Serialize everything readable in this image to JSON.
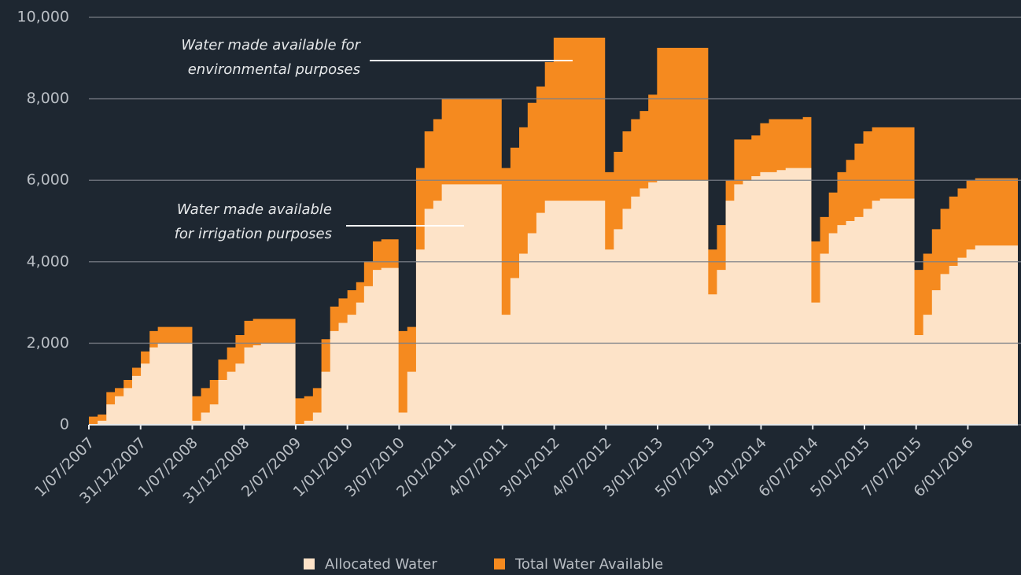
{
  "chart_data": {
    "type": "step-area",
    "x": [
      "2007-07-01",
      "2007-08-01",
      "2007-09-01",
      "2007-10-01",
      "2007-11-01",
      "2007-12-01",
      "2008-01-01",
      "2008-02-01",
      "2008-03-01",
      "2008-04-01",
      "2008-05-01",
      "2008-06-01",
      "2008-07-01",
      "2008-08-01",
      "2008-09-01",
      "2008-10-01",
      "2008-11-01",
      "2008-12-01",
      "2009-01-01",
      "2009-02-01",
      "2009-03-01",
      "2009-04-01",
      "2009-05-01",
      "2009-06-01",
      "2009-07-01",
      "2009-08-01",
      "2009-09-01",
      "2009-10-01",
      "2009-11-01",
      "2009-12-01",
      "2010-01-01",
      "2010-02-01",
      "2010-03-01",
      "2010-04-01",
      "2010-05-01",
      "2010-06-01",
      "2010-07-01",
      "2010-08-01",
      "2010-09-01",
      "2010-10-01",
      "2010-11-01",
      "2010-12-01",
      "2011-01-01",
      "2011-02-01",
      "2011-03-01",
      "2011-04-01",
      "2011-05-01",
      "2011-06-01",
      "2011-07-01",
      "2011-08-01",
      "2011-09-01",
      "2011-10-01",
      "2011-11-01",
      "2011-12-01",
      "2012-01-01",
      "2012-02-01",
      "2012-03-01",
      "2012-04-01",
      "2012-05-01",
      "2012-06-01",
      "2012-07-01",
      "2012-08-01",
      "2012-09-01",
      "2012-10-01",
      "2012-11-01",
      "2012-12-01",
      "2013-01-01",
      "2013-02-01",
      "2013-03-01",
      "2013-04-01",
      "2013-05-01",
      "2013-06-01",
      "2013-07-01",
      "2013-08-01",
      "2013-09-01",
      "2013-10-01",
      "2013-11-01",
      "2013-12-01",
      "2014-01-01",
      "2014-02-01",
      "2014-03-01",
      "2014-04-01",
      "2014-05-01",
      "2014-06-01",
      "2014-07-01",
      "2014-08-01",
      "2014-09-01",
      "2014-10-01",
      "2014-11-01",
      "2014-12-01",
      "2015-01-01",
      "2015-02-01",
      "2015-03-01",
      "2015-04-01",
      "2015-05-01",
      "2015-06-01",
      "2015-07-01",
      "2015-08-01",
      "2015-09-01",
      "2015-10-01",
      "2015-11-01",
      "2015-12-01",
      "2016-01-01",
      "2016-02-01",
      "2016-03-01",
      "2016-04-01",
      "2016-05-01",
      "2016-06-01"
    ],
    "series": [
      {
        "name": "Total Water Available",
        "color": "#f58a1f",
        "values": [
          200,
          250,
          800,
          900,
          1100,
          1400,
          1800,
          2300,
          2400,
          2400,
          2400,
          2400,
          700,
          900,
          1100,
          1600,
          1900,
          2200,
          2550,
          2600,
          2600,
          2600,
          2600,
          2600,
          650,
          700,
          900,
          2100,
          2900,
          3100,
          3300,
          3500,
          4000,
          4500,
          4550,
          4550,
          2300,
          2400,
          6300,
          7200,
          7500,
          8000,
          8000,
          8000,
          8000,
          8000,
          8000,
          8000,
          6300,
          6800,
          7300,
          7900,
          8300,
          8900,
          9500,
          9500,
          9500,
          9500,
          9500,
          9500,
          6200,
          6700,
          7200,
          7500,
          7700,
          8100,
          9250,
          9250,
          9250,
          9250,
          9250,
          9250,
          4300,
          4900,
          6000,
          7000,
          7000,
          7100,
          7400,
          7500,
          7500,
          7500,
          7500,
          7550,
          4500,
          5100,
          5700,
          6200,
          6500,
          6900,
          7200,
          7300,
          7300,
          7300,
          7300,
          7300,
          3800,
          4200,
          4800,
          5300,
          5600,
          5800,
          6000,
          6050,
          6050,
          6050,
          6050,
          6050
        ]
      },
      {
        "name": "Allocated Water",
        "color": "#fde3c8",
        "values": [
          0,
          100,
          500,
          700,
          900,
          1200,
          1500,
          1900,
          2000,
          2000,
          2000,
          2000,
          100,
          300,
          500,
          1100,
          1300,
          1500,
          1900,
          1950,
          2000,
          2000,
          2000,
          2000,
          0,
          100,
          300,
          1300,
          2300,
          2500,
          2700,
          3000,
          3400,
          3800,
          3850,
          3850,
          300,
          1300,
          4300,
          5300,
          5500,
          5900,
          5900,
          5900,
          5900,
          5900,
          5900,
          5900,
          2700,
          3600,
          4200,
          4700,
          5200,
          5500,
          5500,
          5500,
          5500,
          5500,
          5500,
          5500,
          4300,
          4800,
          5300,
          5600,
          5800,
          5950,
          6000,
          6000,
          6000,
          6000,
          6000,
          6000,
          3200,
          3800,
          5500,
          5900,
          6000,
          6100,
          6200,
          6200,
          6250,
          6300,
          6300,
          6300,
          3000,
          4200,
          4700,
          4900,
          5000,
          5100,
          5300,
          5500,
          5550,
          5550,
          5550,
          5550,
          2200,
          2700,
          3300,
          3700,
          3900,
          4100,
          4300,
          4400,
          4400,
          4400,
          4400,
          4400
        ]
      }
    ],
    "xlim": [
      "2007-07-01",
      "2016-07-01"
    ],
    "xticks": [
      {
        "value": "2007-07-01",
        "label": "1/07/2007"
      },
      {
        "value": "2007-12-31",
        "label": "31/12/2007"
      },
      {
        "value": "2008-07-01",
        "label": "1/07/2008"
      },
      {
        "value": "2008-12-31",
        "label": "31/12/2008"
      },
      {
        "value": "2009-07-02",
        "label": "2/07/2009"
      },
      {
        "value": "2010-01-01",
        "label": "1/01/2010"
      },
      {
        "value": "2010-07-03",
        "label": "3/07/2010"
      },
      {
        "value": "2011-01-02",
        "label": "2/01/2011"
      },
      {
        "value": "2011-07-04",
        "label": "4/07/2011"
      },
      {
        "value": "2012-01-03",
        "label": "3/01/2012"
      },
      {
        "value": "2012-07-04",
        "label": "4/07/2012"
      },
      {
        "value": "2013-01-03",
        "label": "3/01/2013"
      },
      {
        "value": "2013-07-05",
        "label": "5/07/2013"
      },
      {
        "value": "2014-01-04",
        "label": "4/01/2014"
      },
      {
        "value": "2014-07-06",
        "label": "6/07/2014"
      },
      {
        "value": "2015-01-05",
        "label": "5/01/2015"
      },
      {
        "value": "2015-07-07",
        "label": "7/07/2015"
      },
      {
        "value": "2016-01-06",
        "label": "6/01/2016"
      }
    ],
    "ylim": [
      0,
      10000
    ],
    "yticks": [
      0,
      {
        "value": 2000,
        "label": "2,000"
      },
      {
        "value": 4000,
        "label": "4,000"
      },
      {
        "value": 6000,
        "label": "6,000"
      },
      {
        "value": 8000,
        "label": "8,000"
      },
      {
        "value": 10000,
        "label": "10,000"
      }
    ],
    "grid": true,
    "annotations": [
      {
        "lines": [
          "Water made available for",
          "environmental purposes"
        ]
      },
      {
        "lines": [
          "Water made available",
          "for irrigation purposes"
        ]
      }
    ]
  }
}
